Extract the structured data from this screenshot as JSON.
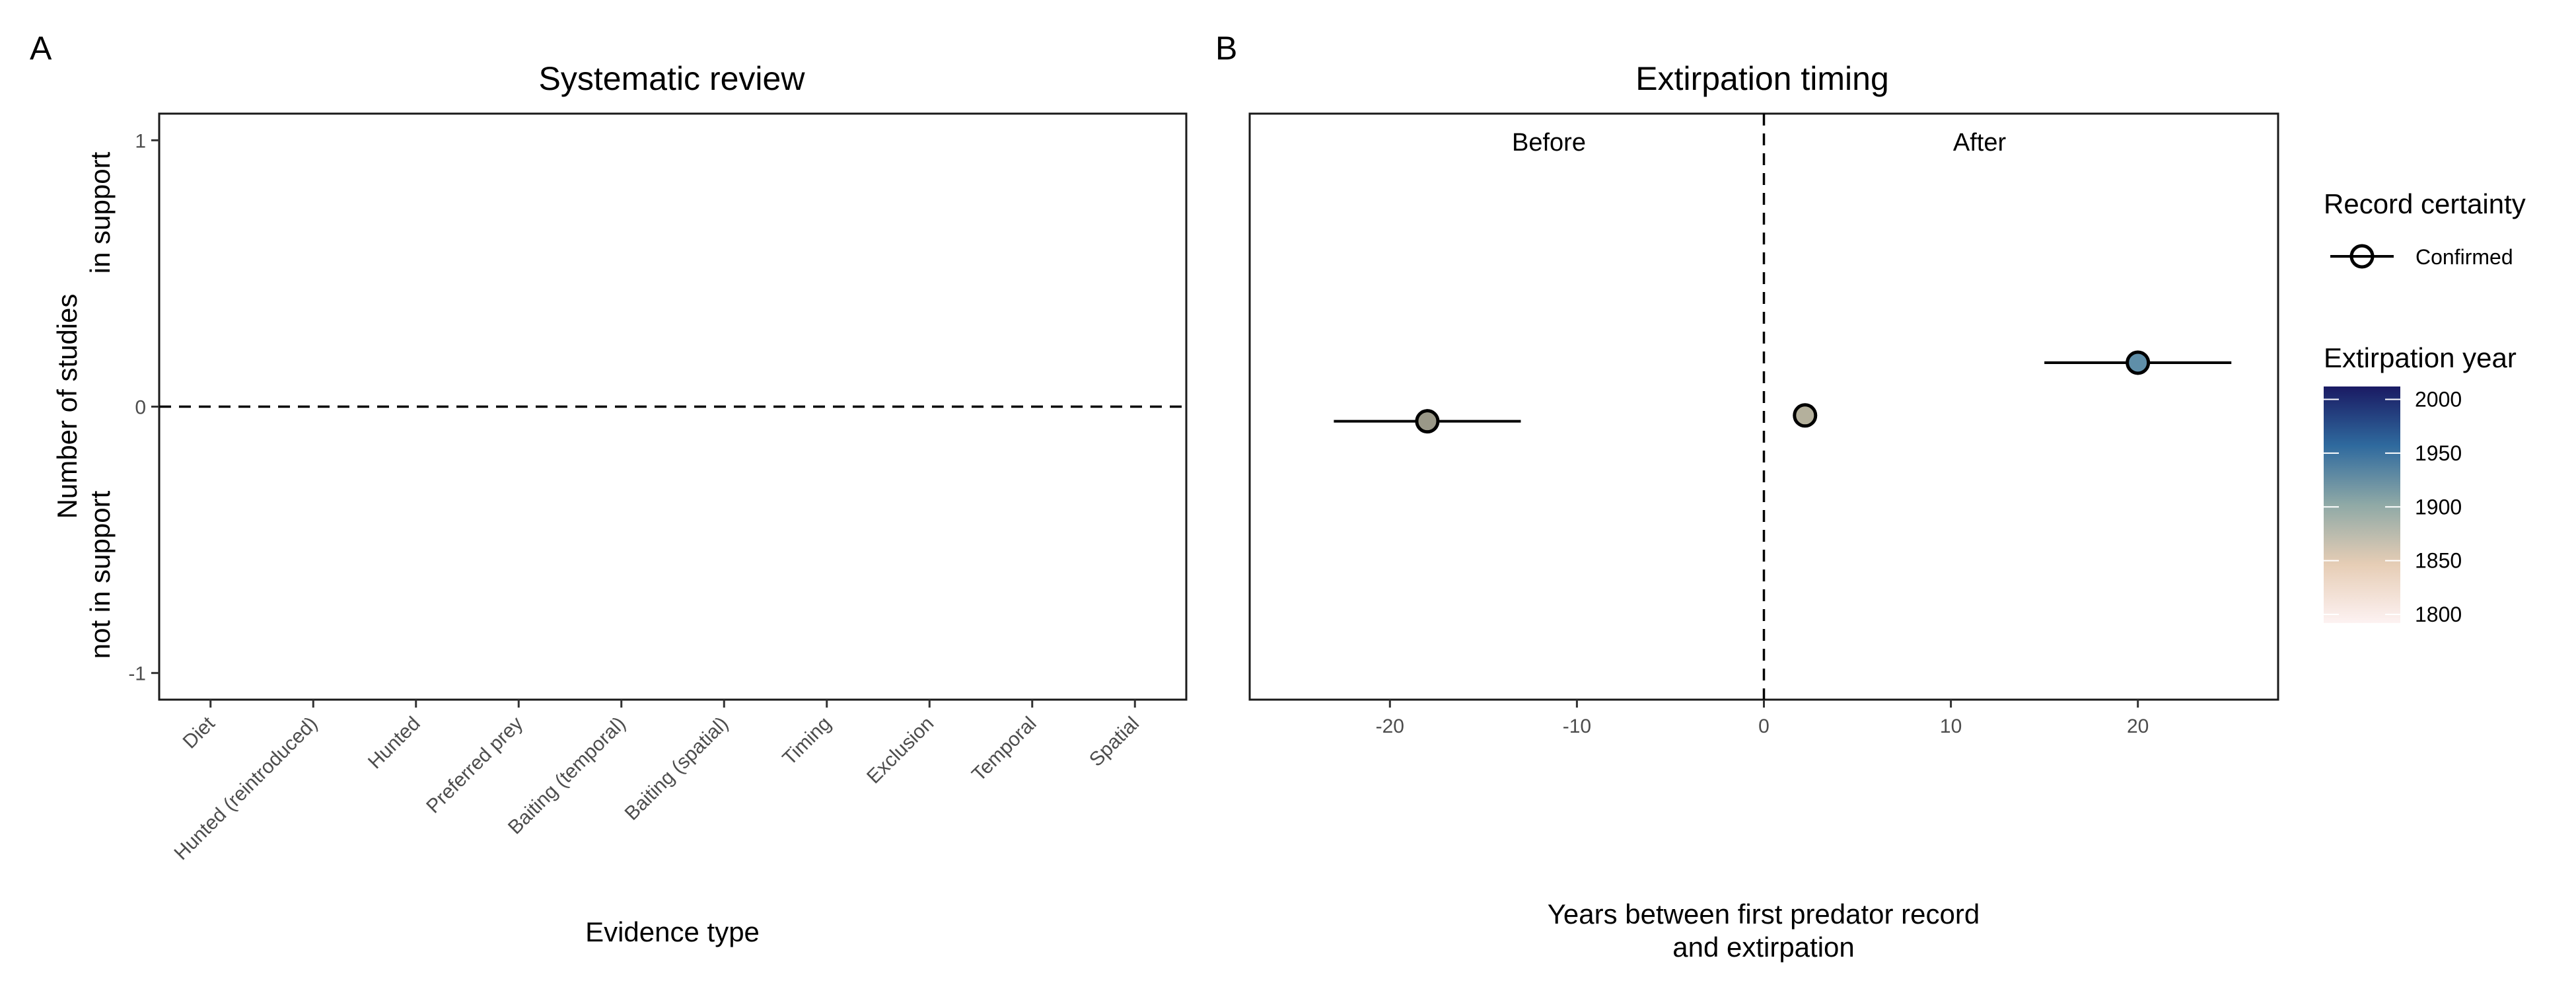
{
  "chart_data": [
    {
      "panel": "A",
      "type": "bar",
      "title": "Systematic review",
      "xlabel": "Evidence type",
      "ylabel_top": "in support",
      "ylabel_bottom": "not in support",
      "ylabel_main": "Number of studies",
      "categories": [
        "Diet",
        "Hunted (reintroduced)",
        "Hunted",
        "Preferred prey",
        "Baiting (temporal)",
        "Baiting (spatial)",
        "Timing",
        "Exclusion",
        "Temporal",
        "Spatial"
      ],
      "values": [
        0,
        0,
        0,
        0,
        0,
        0,
        0,
        0,
        0,
        0
      ],
      "ylim": [
        -1.1,
        1.1
      ],
      "yticks": [
        -1,
        0,
        1
      ],
      "reference_line": 0,
      "grid": false
    },
    {
      "panel": "B",
      "type": "scatter",
      "title": "Extirpation timing",
      "xlabel_line1": "Years between first predator record",
      "xlabel_line2": "and extirpation",
      "xlim": [
        -27.5,
        27.5
      ],
      "xticks": [
        -20,
        -10,
        0,
        10,
        20
      ],
      "ylim": [
        -1,
        1
      ],
      "reference_line": 0,
      "region_labels": {
        "left": "Before",
        "right": "After"
      },
      "points": [
        {
          "x": -18,
          "xmin": -23,
          "xmax": -13,
          "y": -0.05,
          "year": 1840,
          "certainty": "Confirmed",
          "color": "#9a9888"
        },
        {
          "x": 2.2,
          "xmin": 2.2,
          "xmax": 2.2,
          "y": -0.03,
          "year": 1852,
          "certainty": "Confirmed",
          "color": "#b4b09c"
        },
        {
          "x": 20,
          "xmin": 15,
          "xmax": 25,
          "y": 0.15,
          "year": 1905,
          "certainty": "Confirmed",
          "color": "#5f8fa9"
        }
      ],
      "legend": {
        "certainty_title": "Record certainty",
        "certainty_item": "Confirmed",
        "colorbar_title": "Extirpation year",
        "colorbar_ticks": [
          1800,
          1850,
          1900,
          1950,
          2000
        ],
        "colorbar_range": [
          1792,
          2012
        ],
        "colorbar_colors": [
          "#1a1a63",
          "#2f6a9e",
          "#8fa9a6",
          "#e6cdb5",
          "#fdf2f2"
        ]
      },
      "grid": false
    }
  ]
}
